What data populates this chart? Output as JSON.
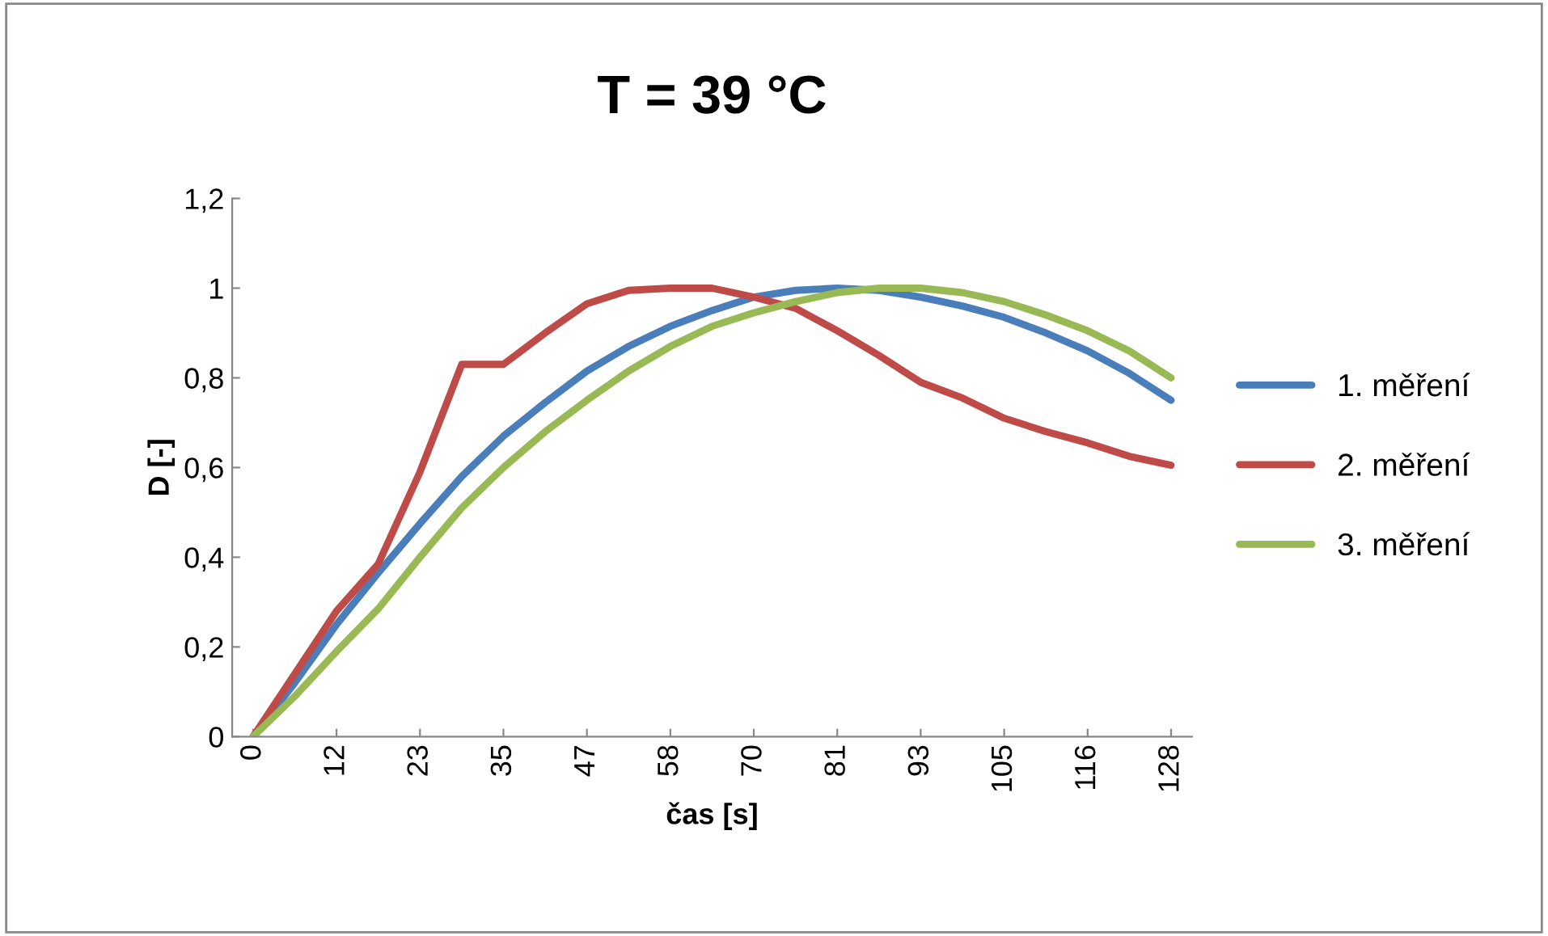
{
  "chart_data": {
    "type": "line",
    "title": "T = 39 °C",
    "xlabel": "čas [s]",
    "ylabel": "D [-]",
    "categories": [
      "0",
      null,
      "12",
      null,
      "23",
      null,
      "35",
      null,
      "47",
      null,
      "58",
      null,
      "70",
      null,
      "81",
      null,
      "93",
      null,
      "105",
      null,
      "116",
      null,
      "128"
    ],
    "series": [
      {
        "name": "1. měření",
        "color": "#4a7ebb",
        "values": [
          0,
          0.12,
          0.25,
          0.365,
          0.475,
          0.58,
          0.67,
          0.745,
          0.815,
          0.87,
          0.915,
          0.95,
          0.98,
          0.995,
          1.0,
          0.995,
          0.98,
          0.96,
          0.935,
          0.9,
          0.86,
          0.81,
          0.75
        ]
      },
      {
        "name": "2. měření",
        "color": "#be4b48",
        "values": [
          0,
          0.14,
          0.28,
          0.385,
          0.59,
          0.83,
          0.83,
          0.9,
          0.965,
          0.995,
          1.0,
          1.0,
          0.98,
          0.955,
          0.905,
          0.85,
          0.79,
          0.755,
          0.71,
          0.68,
          0.655,
          0.625,
          0.605
        ]
      },
      {
        "name": "3. měření",
        "color": "#98b954",
        "values": [
          0,
          0.09,
          0.19,
          0.285,
          0.4,
          0.51,
          0.6,
          0.68,
          0.75,
          0.815,
          0.87,
          0.915,
          0.945,
          0.97,
          0.99,
          1.0,
          1.0,
          0.99,
          0.97,
          0.94,
          0.905,
          0.86,
          0.8
        ]
      }
    ],
    "ylim": [
      0,
      1.2
    ],
    "yticks": [
      0,
      {
        "value": 0.2,
        "label": "0,2"
      },
      {
        "value": 0.4,
        "label": "0,4"
      },
      {
        "value": 0.6,
        "label": "0,6"
      },
      {
        "value": 0.8,
        "label": "0,8"
      },
      1,
      {
        "value": 1.2,
        "label": "1,2"
      }
    ],
    "grid": false,
    "legend": "right",
    "marker": "none",
    "line_style": "solid"
  }
}
